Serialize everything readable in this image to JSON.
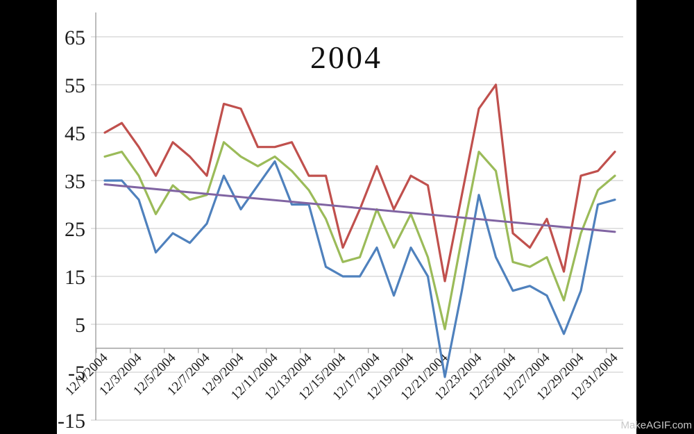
{
  "watermark": "MakeAGIF.com",
  "colors": {
    "background": "#ffffff",
    "letterbox": "#000000",
    "gridline": "#c7c7c7",
    "axis": "#9f9f9f",
    "label_text": "#1c1c1c",
    "series_red": "#C0504D",
    "series_green": "#9BBB59",
    "series_blue": "#4F81BD",
    "trendline_purple": "#8064A2",
    "watermark_text": "#c9c9c9"
  },
  "chart_data": {
    "type": "line",
    "title": "2004",
    "categories": [
      "12/1/2004",
      "12/2/2004",
      "12/3/2004",
      "12/4/2004",
      "12/5/2004",
      "12/6/2004",
      "12/7/2004",
      "12/8/2004",
      "12/9/2004",
      "12/10/2004",
      "12/11/2004",
      "12/12/2004",
      "12/13/2004",
      "12/14/2004",
      "12/15/2004",
      "12/16/2004",
      "12/17/2004",
      "12/18/2004",
      "12/19/2004",
      "12/20/2004",
      "12/21/2004",
      "12/22/2004",
      "12/23/2004",
      "12/24/2004",
      "12/25/2004",
      "12/26/2004",
      "12/27/2004",
      "12/28/2004",
      "12/29/2004",
      "12/30/2004",
      "12/31/2004"
    ],
    "x_labels_shown": [
      "12/1/2004",
      "12/3/2004",
      "12/5/2004",
      "12/7/2004",
      "12/9/2004",
      "12/11/2004",
      "12/13/2004",
      "12/15/2004",
      "12/17/2004",
      "12/19/2004",
      "12/21/2004",
      "12/23/2004",
      "12/25/2004",
      "12/27/2004",
      "12/29/2004",
      "12/31/2004"
    ],
    "y_ticks": [
      65,
      55,
      45,
      35,
      25,
      15,
      5,
      -5,
      -15
    ],
    "ylim": [
      -15,
      70
    ],
    "baseline_value": 0,
    "grid": true,
    "legend": "none",
    "series": [
      {
        "name": "red-high-series",
        "color": "#C0504D",
        "values": [
          45,
          47,
          42,
          36,
          43,
          40,
          36,
          51,
          50,
          42,
          42,
          43,
          36,
          36,
          21,
          29,
          38,
          29,
          36,
          34,
          14,
          32,
          50,
          55,
          24,
          21,
          27,
          16,
          36,
          37,
          41
        ]
      },
      {
        "name": "green-mid-series",
        "color": "#9BBB59",
        "values": [
          40,
          41,
          36,
          28,
          34,
          31,
          32,
          43,
          40,
          38,
          40,
          37,
          33,
          27,
          18,
          19,
          29,
          21,
          28,
          19,
          4,
          23,
          41,
          37,
          18,
          17,
          19,
          10,
          24,
          33,
          36
        ]
      },
      {
        "name": "blue-low-series",
        "color": "#4F81BD",
        "values": [
          35,
          35,
          31,
          20,
          24,
          22,
          26,
          36,
          29,
          34,
          39,
          30,
          30,
          17,
          15,
          15,
          21,
          11,
          21,
          15,
          -6,
          12,
          32,
          19,
          12,
          13,
          11,
          3,
          12,
          30,
          31
        ]
      }
    ],
    "trendline": {
      "name": "linear-trend",
      "color": "#8064A2",
      "start_value": 34.2,
      "end_value": 24.3
    }
  }
}
